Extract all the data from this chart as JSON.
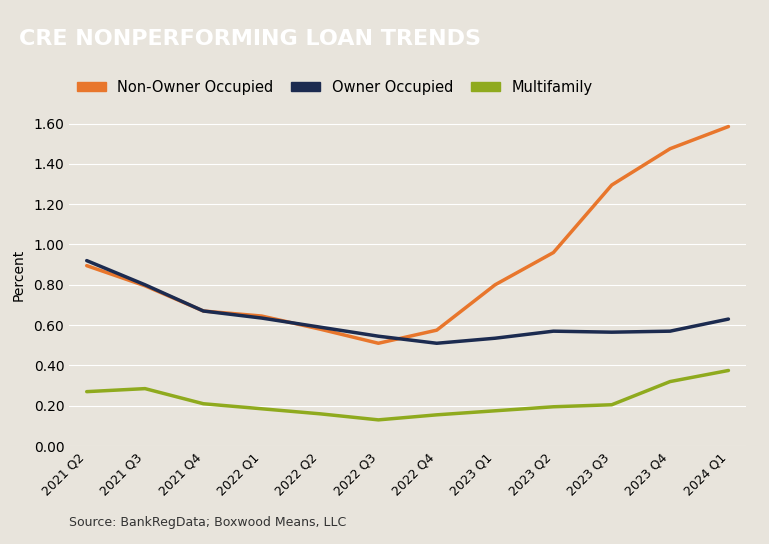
{
  "title": "CRE NONPERFORMING LOAN TRENDS",
  "title_bg_color": "#4a4a4a",
  "title_text_color": "#ffffff",
  "chart_bg_color": "#e8e4dc",
  "source_text": "Source: BankRegData; Boxwood Means, LLC",
  "ylabel": "Percent",
  "ylim": [
    0.0,
    1.7
  ],
  "yticks": [
    0.0,
    0.2,
    0.4,
    0.6,
    0.8,
    1.0,
    1.2,
    1.4,
    1.6
  ],
  "x_labels": [
    "2021 Q2",
    "2021 Q3",
    "2021 Q4",
    "2022 Q1",
    "2022 Q2",
    "2022 Q3",
    "2022 Q4",
    "2023 Q1",
    "2023 Q2",
    "2023 Q3",
    "2023 Q4",
    "2024 Q1"
  ],
  "series": [
    {
      "name": "Non-Owner Occupied",
      "color": "#e8762c",
      "linewidth": 2.5,
      "values": [
        0.895,
        0.795,
        0.67,
        0.645,
        0.58,
        0.51,
        0.575,
        0.8,
        0.96,
        1.295,
        1.475,
        1.585
      ]
    },
    {
      "name": "Owner Occupied",
      "color": "#1c2b50",
      "linewidth": 2.5,
      "values": [
        0.92,
        0.8,
        0.67,
        0.635,
        0.59,
        0.545,
        0.51,
        0.535,
        0.57,
        0.565,
        0.57,
        0.63
      ]
    },
    {
      "name": "Multifamily",
      "color": "#8faa1e",
      "linewidth": 2.5,
      "values": [
        0.27,
        0.285,
        0.21,
        0.185,
        0.16,
        0.13,
        0.155,
        0.175,
        0.195,
        0.205,
        0.32,
        0.375
      ]
    }
  ]
}
